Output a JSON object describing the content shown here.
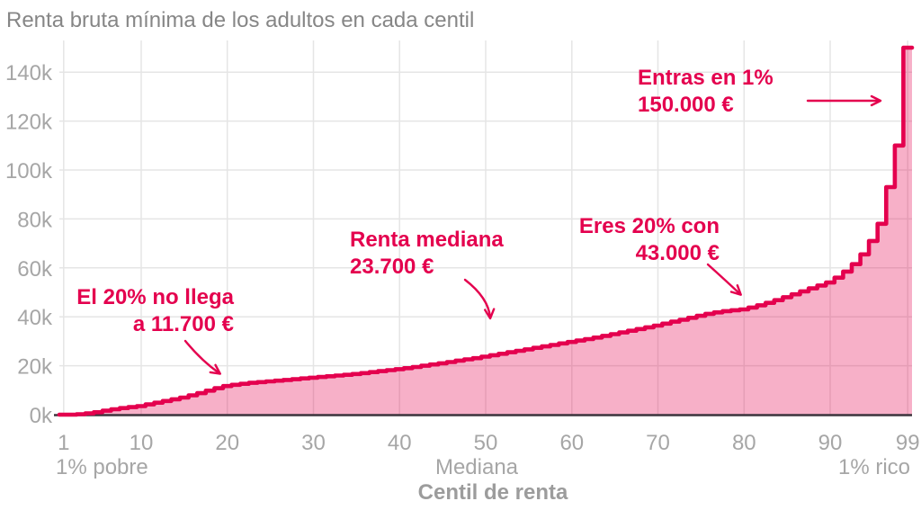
{
  "colors": {
    "line": "#e4004e",
    "area_fill": "#f8b1c6",
    "annotation_text": "#e4004e",
    "title_text": "#868686",
    "axis_text": "#a6a6a6",
    "axis_title_text": "#9c9c9c",
    "gridline": "#e5e5e5",
    "baseline": "#3c343c"
  },
  "chart_data": {
    "type": "area",
    "subtype": "step",
    "title": "Renta bruta mínima de los adultos en cada centil",
    "xlabel": "Centil de renta",
    "ylabel": "",
    "grid": true,
    "xlim": [
      1,
      99
    ],
    "ylim": [
      0,
      153000
    ],
    "x_ticks": [
      1,
      10,
      20,
      30,
      40,
      50,
      60,
      70,
      80,
      90,
      99
    ],
    "y_ticks": [
      0,
      20000,
      40000,
      60000,
      80000,
      100000,
      120000,
      140000
    ],
    "y_tick_labels": [
      "0k",
      "20k",
      "40k",
      "60k",
      "80k",
      "100k",
      "120k",
      "140k"
    ],
    "x_secondary_labels": {
      "left": "1% pobre",
      "center": "Mediana",
      "right": "1% rico"
    },
    "x_definition": "centil 1 a 99",
    "values": [
      0,
      0,
      200,
      500,
      1000,
      1600,
      2200,
      2700,
      3100,
      3500,
      4200,
      4900,
      5600,
      6300,
      7000,
      7900,
      8800,
      9800,
      10800,
      11700,
      12200,
      12600,
      13000,
      13300,
      13600,
      13900,
      14200,
      14500,
      14800,
      15100,
      15400,
      15700,
      16000,
      16300,
      16600,
      17000,
      17400,
      17800,
      18200,
      18600,
      19000,
      19500,
      20000,
      20500,
      21000,
      21500,
      22100,
      22600,
      23100,
      23700,
      24300,
      24900,
      25500,
      26100,
      26700,
      27300,
      27900,
      28500,
      29100,
      29700,
      30300,
      30900,
      31500,
      32200,
      32900,
      33600,
      34300,
      35000,
      35700,
      36400,
      37200,
      38000,
      38800,
      39600,
      40400,
      41200,
      41800,
      42300,
      42700,
      43000,
      43800,
      44700,
      45700,
      46800,
      48000,
      49200,
      50400,
      51600,
      52800,
      54000,
      56000,
      58500,
      61500,
      65500,
      71000,
      78000,
      93000,
      110000,
      150000
    ],
    "annotations": [
      {
        "line1": "El 20% no llega",
        "line2": "a 11.700 €",
        "target_percentile": 20,
        "value_eur": 11700
      },
      {
        "line1": "Renta mediana",
        "line2": "23.700 €",
        "target_percentile": 50,
        "value_eur": 23700
      },
      {
        "line1": "Eres 20% con",
        "line2": "43.000 €",
        "target_percentile": 80,
        "value_eur": 43000
      },
      {
        "line1": "Entras en 1%",
        "line2": "150.000 €",
        "target_percentile": 99,
        "value_eur": 150000
      }
    ]
  }
}
